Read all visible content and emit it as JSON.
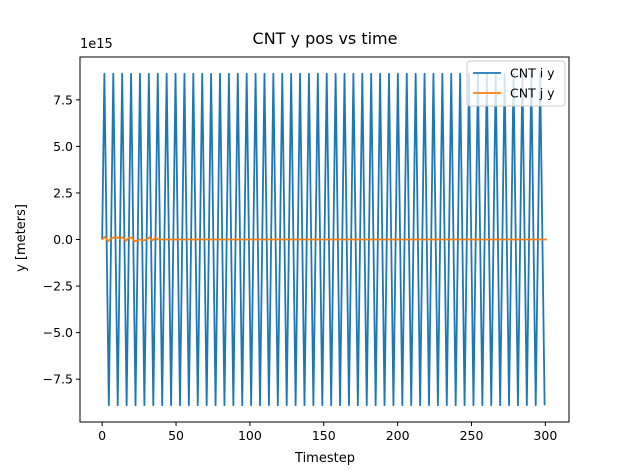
{
  "chart_data": {
    "type": "line",
    "title": "CNT y pos vs time",
    "xlabel": "Timestep",
    "ylabel": "y [meters]",
    "y_offset_label": "1e15",
    "y_scale": 1000000000000000.0,
    "xlim": [
      -15,
      316
    ],
    "ylim": [
      -9.8,
      9.8
    ],
    "x_ticks": [
      0,
      50,
      100,
      150,
      200,
      250,
      300
    ],
    "y_ticks": [
      -7.5,
      -5.0,
      -2.5,
      0.0,
      2.5,
      5.0,
      7.5
    ],
    "x_tick_labels": [
      "0",
      "50",
      "100",
      "150",
      "200",
      "250",
      "300"
    ],
    "y_tick_labels": [
      "−7.5",
      "−5.0",
      "−2.5",
      "0.0",
      "2.5",
      "5.0",
      "7.5"
    ],
    "grid": false,
    "legend_position": "top-right",
    "series": [
      {
        "name": "CNT i y",
        "color": "#1f77b4",
        "pattern": "triangle-wave",
        "x_start": 0,
        "x_end": 301,
        "amplitude": 8.9,
        "period": 6.02,
        "start_value": 0.0
      },
      {
        "name": "CNT j y",
        "color": "#ff7f0e",
        "x": [
          0,
          2,
          4,
          6,
          8,
          10,
          12,
          14,
          16,
          18,
          20,
          22,
          24,
          26,
          28,
          30,
          32,
          34,
          36,
          38,
          40,
          50,
          100,
          150,
          200,
          250,
          301
        ],
        "y": [
          0.0,
          0.15,
          -0.1,
          0.05,
          0.12,
          0.12,
          0.05,
          0.12,
          -0.08,
          0.1,
          0.1,
          -0.1,
          -0.05,
          0.0,
          -0.05,
          0.0,
          0.12,
          -0.05,
          0.1,
          0.0,
          0.0,
          0.0,
          0.0,
          0.0,
          0.0,
          0.0,
          0.0
        ]
      }
    ]
  }
}
